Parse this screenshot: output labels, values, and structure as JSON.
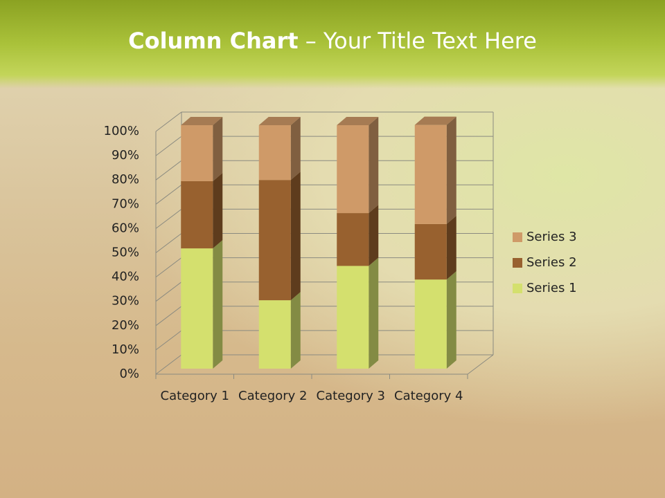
{
  "chart_data": {
    "type": "stacked-column-3d",
    "title": "Column Chart",
    "title_rest": "– Your Title Text Here",
    "categories": [
      "Category 1",
      "Category 2",
      "Category 3",
      "Category 4"
    ],
    "series": [
      {
        "name": "Series 1",
        "color": "#d4e06e",
        "values": [
          49.4,
          28.1,
          42.2,
          36.6
        ]
      },
      {
        "name": "Series 2",
        "color": "#98612f",
        "values": [
          27.6,
          49.4,
          21.7,
          22.8
        ]
      },
      {
        "name": "Series 3",
        "color": "#cf9a68",
        "values": [
          23.0,
          22.5,
          36.1,
          40.7
        ]
      }
    ],
    "ylim": [
      0,
      100
    ],
    "yticks": [
      {
        "value": 0,
        "label": "0%"
      },
      {
        "value": 10,
        "label": "10%"
      },
      {
        "value": 20,
        "label": "20%"
      },
      {
        "value": 30,
        "label": "30%"
      },
      {
        "value": 40,
        "label": "40%"
      },
      {
        "value": 50,
        "label": "50%"
      },
      {
        "value": 60,
        "label": "60%"
      },
      {
        "value": 70,
        "label": "70%"
      },
      {
        "value": 80,
        "label": "80%"
      },
      {
        "value": 90,
        "label": "90%"
      },
      {
        "value": 100,
        "label": "100%"
      }
    ],
    "grid": true,
    "legend": "right"
  }
}
